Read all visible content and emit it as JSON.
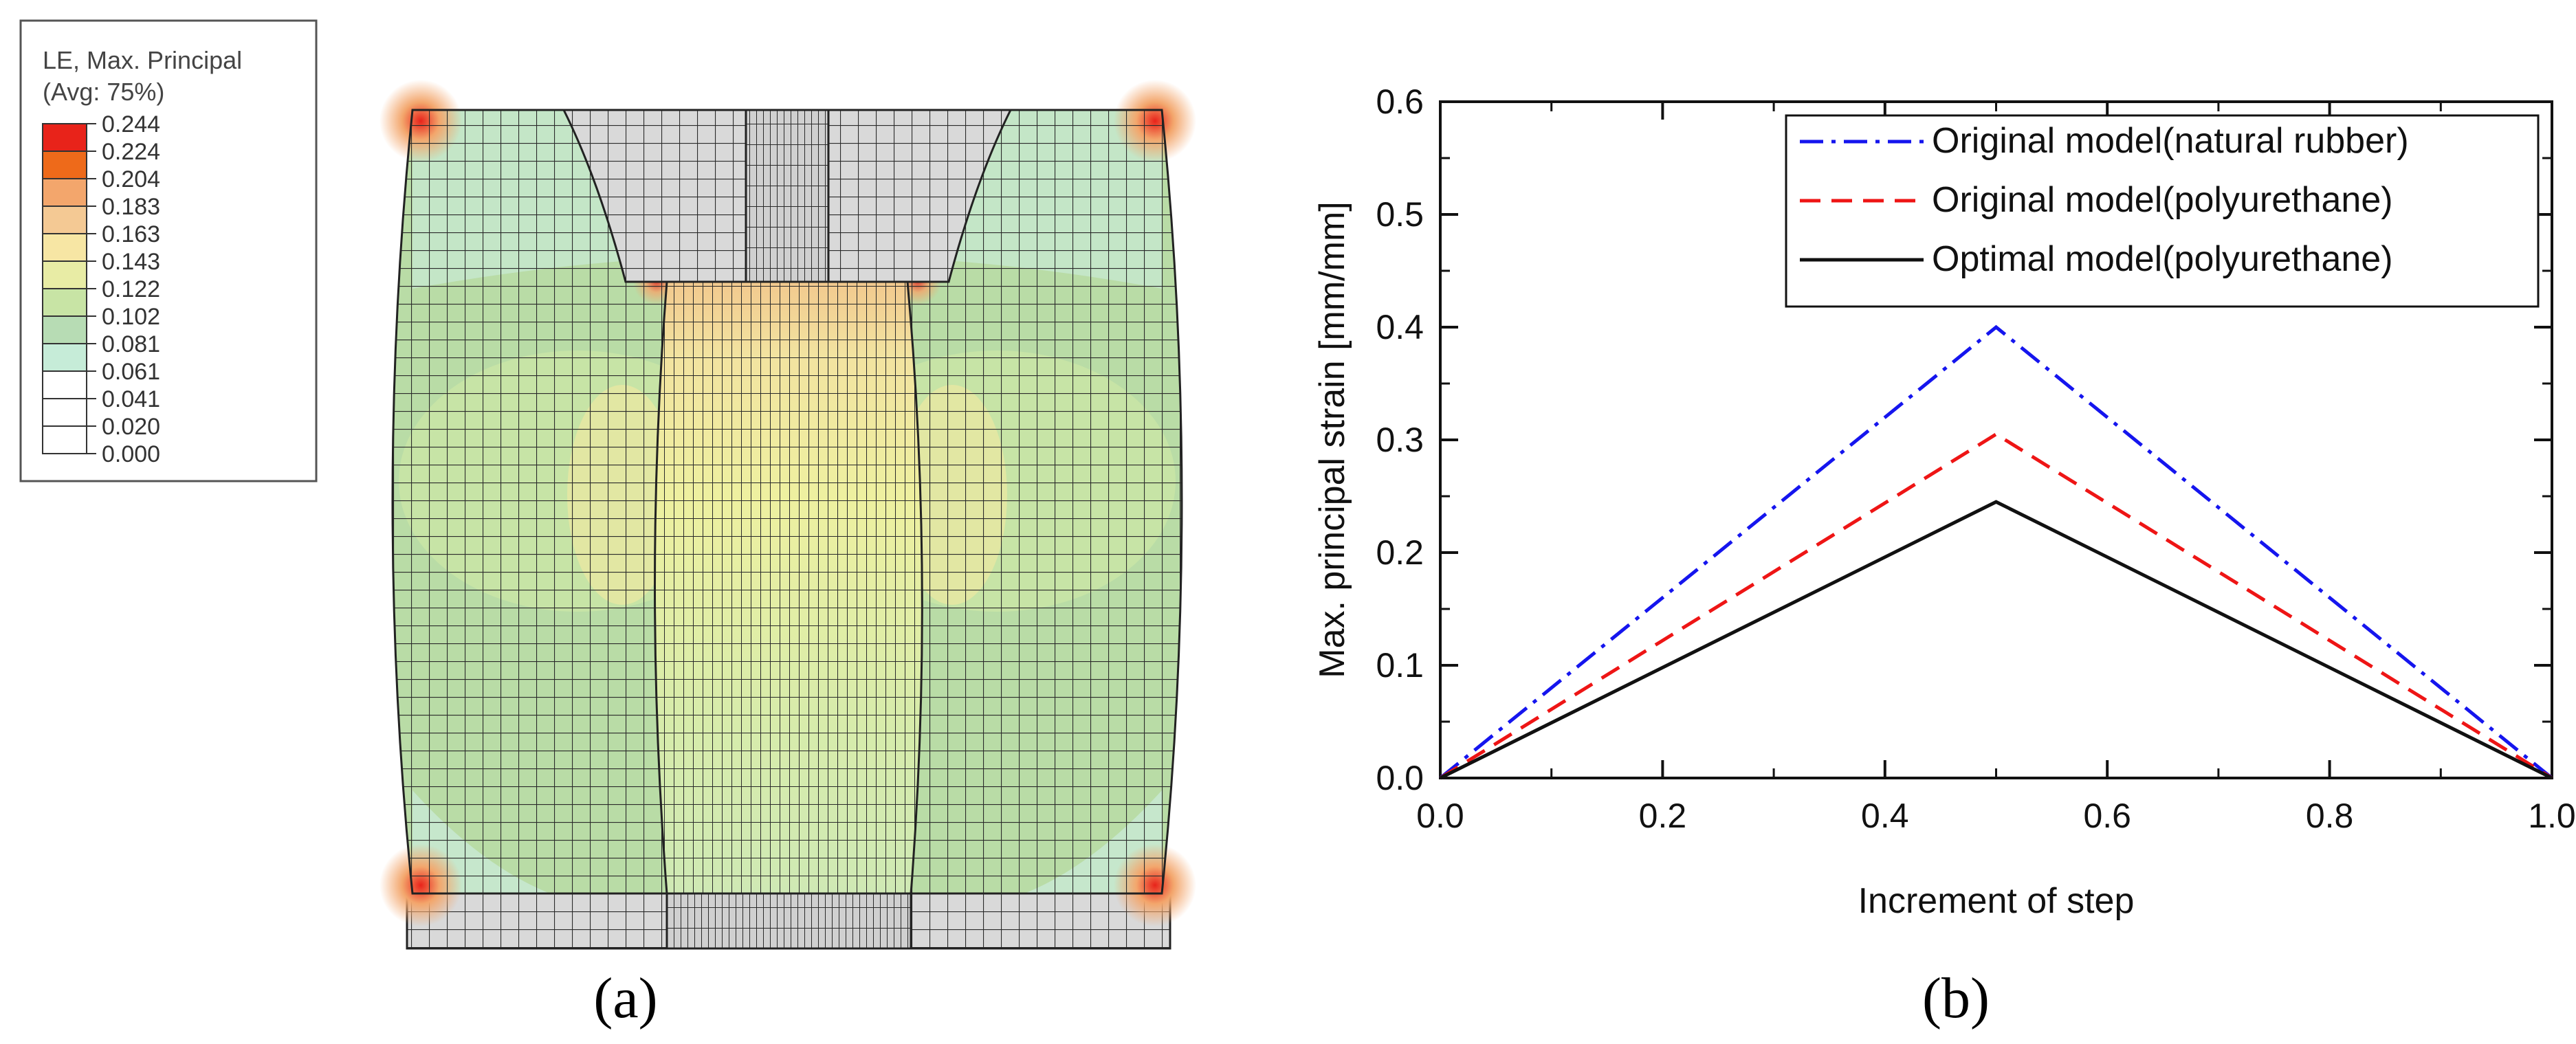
{
  "figure": {
    "caption_a": "(a)",
    "caption_b": "(b)"
  },
  "contour_legend": {
    "title_line1": "LE, Max. Principal",
    "title_line2": "(Avg: 75%)",
    "levels": [
      "0.244",
      "0.224",
      "0.204",
      "0.183",
      "0.163",
      "0.143",
      "0.122",
      "0.102",
      "0.081",
      "0.061",
      "0.041",
      "0.020",
      "0.000"
    ],
    "colors": [
      "#e8231a",
      "#ee6a1a",
      "#f3a66c",
      "#f4c994",
      "#f7e6a4",
      "#e8eca5",
      "#c8e4a5",
      "#b7dcb4",
      "#c6ecd8",
      "#ffffff",
      "#ffffff",
      "#ffffff"
    ]
  },
  "chart_data": {
    "type": "line",
    "title": "",
    "xlabel": "Increment of step",
    "ylabel": "Max. principal strain [mm/mm]",
    "xlim": [
      0.0,
      1.0
    ],
    "ylim": [
      0.0,
      0.6
    ],
    "x_ticks": [
      "0.0",
      "0.2",
      "0.4",
      "0.6",
      "0.8",
      "1.0"
    ],
    "y_ticks": [
      "0.0",
      "0.1",
      "0.2",
      "0.3",
      "0.4",
      "0.5",
      "0.6"
    ],
    "grid": false,
    "legend_position": "top-right",
    "series": [
      {
        "name": "Original model(natural rubber)",
        "style": "dash-dot",
        "color": "#1515ee",
        "x": [
          0.0,
          0.5,
          1.0
        ],
        "y": [
          0.0,
          0.4,
          0.0
        ]
      },
      {
        "name": "Original model(polyurethane)",
        "style": "dashed",
        "color": "#ee1515",
        "x": [
          0.0,
          0.5,
          1.0
        ],
        "y": [
          0.0,
          0.305,
          0.0
        ]
      },
      {
        "name": "Optimal model(polyurethane)",
        "style": "solid",
        "color": "#111111",
        "x": [
          0.0,
          0.5,
          1.0
        ],
        "y": [
          0.0,
          0.245,
          0.0
        ]
      }
    ]
  }
}
